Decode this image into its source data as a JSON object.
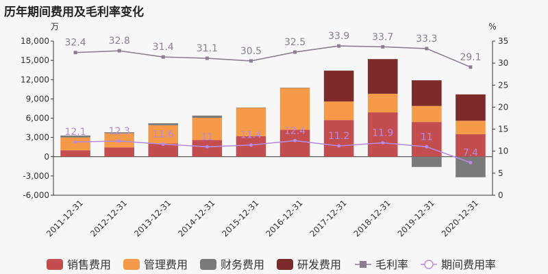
{
  "chart_data": {
    "type": "bar",
    "title": "历年期间费用及毛利率变化",
    "categories": [
      "2011-12-31",
      "2012-12-31",
      "2013-12-31",
      "2014-12-31",
      "2015-12-31",
      "2016-12-31",
      "2017-12-31",
      "2018-12-31",
      "2019-12-31",
      "2020-12-31"
    ],
    "left_unit": "万",
    "right_unit": "%",
    "ylim_left": [
      -6000,
      18000
    ],
    "yticks_left": [
      "18,000",
      "15,000",
      "12,000",
      "9,000",
      "6,000",
      "3,000",
      "0",
      "-3,000",
      "-6,000"
    ],
    "ylim_right": [
      0,
      35
    ],
    "yticks_right": [
      "35",
      "30",
      "25",
      "20",
      "15",
      "10",
      "5",
      "0"
    ],
    "legend_position": "bottom",
    "grid": false,
    "series": [
      {
        "name": "销售费用",
        "kind": "bar",
        "color": "#c44e4f",
        "values": [
          1000,
          1450,
          2050,
          2600,
          3200,
          4200,
          5700,
          6900,
          5400,
          3500
        ]
      },
      {
        "name": "管理费用",
        "kind": "bar",
        "color": "#f59a48",
        "values": [
          2000,
          2200,
          2850,
          3450,
          4400,
          6500,
          2900,
          2900,
          2500,
          2100
        ]
      },
      {
        "name": "财务费用",
        "kind": "bar",
        "color": "#7a7a7a",
        "values": [
          300,
          150,
          300,
          350,
          50,
          50,
          0,
          0,
          -1600,
          -3200
        ]
      },
      {
        "name": "研发费用",
        "kind": "bar",
        "color": "#7d2a2b",
        "values": [
          0,
          0,
          0,
          0,
          0,
          0,
          4800,
          5400,
          4000,
          4100
        ]
      },
      {
        "name": "毛利率",
        "kind": "line",
        "axis": "right",
        "color": "#8c7f90",
        "marker": "square",
        "values": [
          32.4,
          32.8,
          31.4,
          31.1,
          30.5,
          32.5,
          33.9,
          33.7,
          33.3,
          29.1
        ],
        "labels": [
          "32.4",
          "32.8",
          "31.4",
          "31.1",
          "30.5",
          "32.5",
          "33.9",
          "33.7",
          "33.3",
          "29.1"
        ]
      },
      {
        "name": "期间费用率",
        "kind": "line",
        "axis": "right",
        "color": "#b98be0",
        "marker": "circle",
        "values": [
          12.1,
          12.3,
          11.6,
          11,
          11.4,
          12.4,
          11.2,
          11.9,
          11,
          7.4
        ],
        "labels": [
          "12.1",
          "12.3",
          "11.6",
          "11",
          "11.4",
          "12.4",
          "11.2",
          "11.9",
          "11",
          "7.4"
        ]
      }
    ]
  }
}
